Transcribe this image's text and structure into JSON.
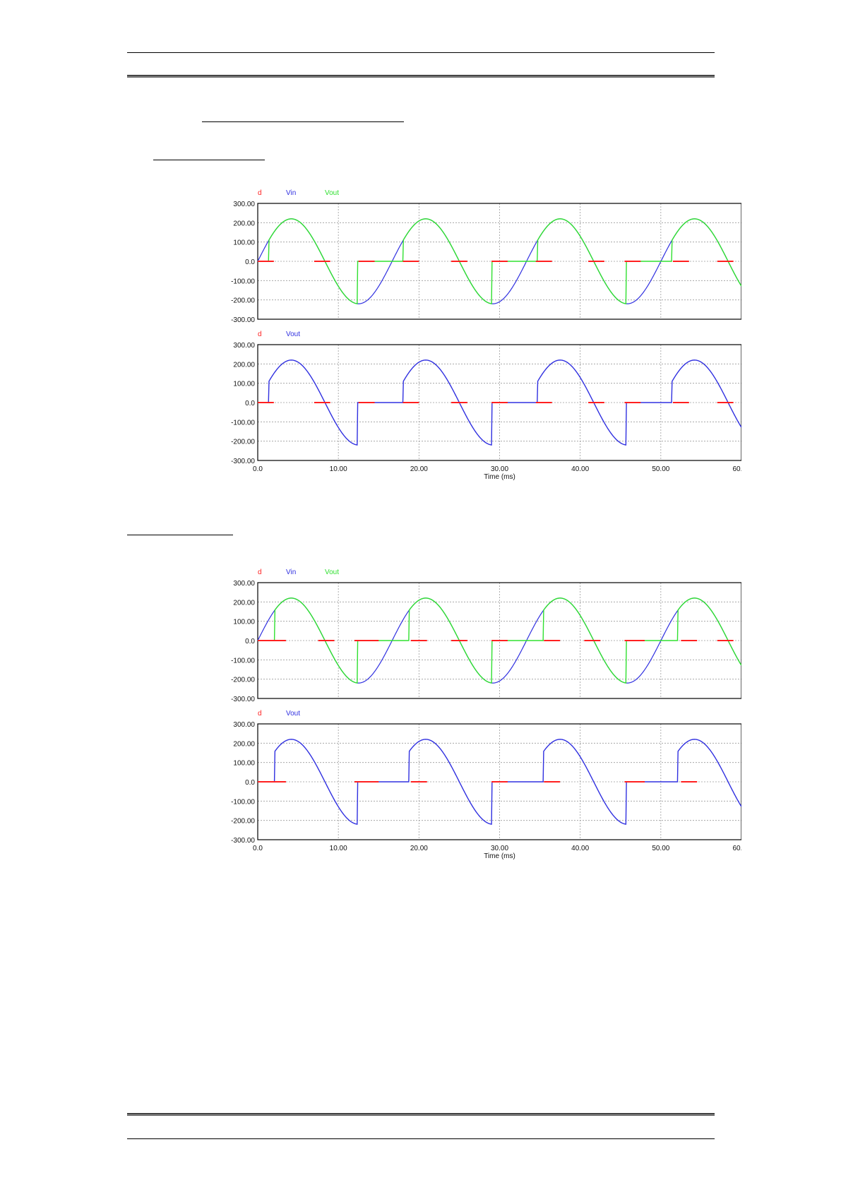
{
  "colors": {
    "d": "#ff2020",
    "vin": "#3030e0",
    "vout_green": "#30e030",
    "vout_blue": "#3030e0",
    "grid": "#9a9a9a"
  },
  "chart_data": [
    {
      "type": "line",
      "legend": [
        "d",
        "Vin",
        "Vout"
      ],
      "series": [
        {
          "name": "d",
          "description": "gate pulse",
          "on_intervals_ms": [
            [
              0.0,
              2.0
            ],
            [
              7.0,
              9.0
            ],
            [
              12.5,
              14.5
            ],
            [
              18.0,
              20.0
            ],
            [
              24.0,
              26.0
            ],
            [
              29.0,
              31.0
            ],
            [
              34.5,
              36.5
            ],
            [
              41.0,
              43.0
            ],
            [
              45.5,
              47.5
            ],
            [
              51.5,
              53.5
            ],
            [
              57.0,
              59.0
            ]
          ]
        },
        {
          "name": "Vin",
          "amplitude": 220,
          "period_ms": 16.67
        },
        {
          "name": "Vout",
          "firing_angle_deg": 30,
          "amplitude": 220,
          "period_ms": 16.67
        }
      ],
      "ylim": [
        -300,
        300
      ],
      "xlim": [
        0,
        60
      ],
      "yticks": [
        "300.00",
        "200.00",
        "100.00",
        "0.0",
        "-100.00",
        "-200.00",
        "-300.00"
      ]
    },
    {
      "type": "line",
      "legend": [
        "d",
        "Vout"
      ],
      "series": [
        {
          "name": "d",
          "on_intervals_ms": [
            [
              0.0,
              2.0
            ],
            [
              7.0,
              9.0
            ],
            [
              12.5,
              14.5
            ],
            [
              18.0,
              20.0
            ],
            [
              24.0,
              26.0
            ],
            [
              29.0,
              31.0
            ],
            [
              34.5,
              36.5
            ],
            [
              41.0,
              43.0
            ],
            [
              45.5,
              47.5
            ],
            [
              51.5,
              53.5
            ],
            [
              57.0,
              59.0
            ]
          ]
        },
        {
          "name": "Vout",
          "firing_angle_deg": 30,
          "amplitude": 220,
          "period_ms": 16.67
        }
      ],
      "ylim": [
        -300,
        300
      ],
      "xlim": [
        0,
        60
      ],
      "xticks": [
        "0.0",
        "10.00",
        "20.00",
        "30.00",
        "40.00",
        "50.00",
        "60.00"
      ],
      "xlabel": "Time (ms)",
      "yticks": [
        "300.00",
        "200.00",
        "100.00",
        "0.0",
        "-100.00",
        "-200.00",
        "-300.00"
      ]
    },
    {
      "type": "line",
      "legend": [
        "d",
        "Vin",
        "Vout"
      ],
      "series": [
        {
          "name": "d",
          "on_intervals_ms": [
            [
              0.0,
              3.5
            ],
            [
              7.5,
              9.5
            ],
            [
              12.0,
              15.0
            ],
            [
              19.0,
              21.0
            ],
            [
              24.0,
              26.0
            ],
            [
              29.0,
              31.0
            ],
            [
              35.5,
              37.5
            ],
            [
              40.5,
              42.5
            ],
            [
              45.5,
              48.0
            ],
            [
              52.5,
              54.5
            ],
            [
              57.0,
              59.0
            ]
          ]
        },
        {
          "name": "Vin",
          "amplitude": 220,
          "period_ms": 16.67
        },
        {
          "name": "Vout",
          "firing_angle_deg": 45,
          "amplitude": 220,
          "period_ms": 16.67
        }
      ],
      "ylim": [
        -300,
        300
      ],
      "xlim": [
        0,
        60
      ],
      "yticks": [
        "300.00",
        "200.00",
        "100.00",
        "0.0",
        "-100.00",
        "-200.00",
        "-300.00"
      ]
    },
    {
      "type": "line",
      "legend": [
        "d",
        "Vout"
      ],
      "series": [
        {
          "name": "d",
          "on_intervals_ms": [
            [
              0.0,
              3.5
            ],
            [
              12.0,
              15.0
            ],
            [
              19.0,
              21.0
            ],
            [
              29.0,
              31.0
            ],
            [
              35.5,
              37.5
            ],
            [
              45.5,
              48.0
            ],
            [
              52.5,
              54.5
            ]
          ]
        },
        {
          "name": "Vout",
          "firing_angle_deg": 45,
          "amplitude": 220,
          "period_ms": 16.67
        }
      ],
      "ylim": [
        -300,
        300
      ],
      "xlim": [
        0,
        60
      ],
      "xticks": [
        "0.0",
        "10.00",
        "20.00",
        "30.00",
        "40.00",
        "50.00",
        "60.00"
      ],
      "xlabel": "Time (ms)",
      "yticks": [
        "300.00",
        "200.00",
        "100.00",
        "0.0",
        "-100.00",
        "-200.00",
        "-300.00"
      ]
    }
  ]
}
